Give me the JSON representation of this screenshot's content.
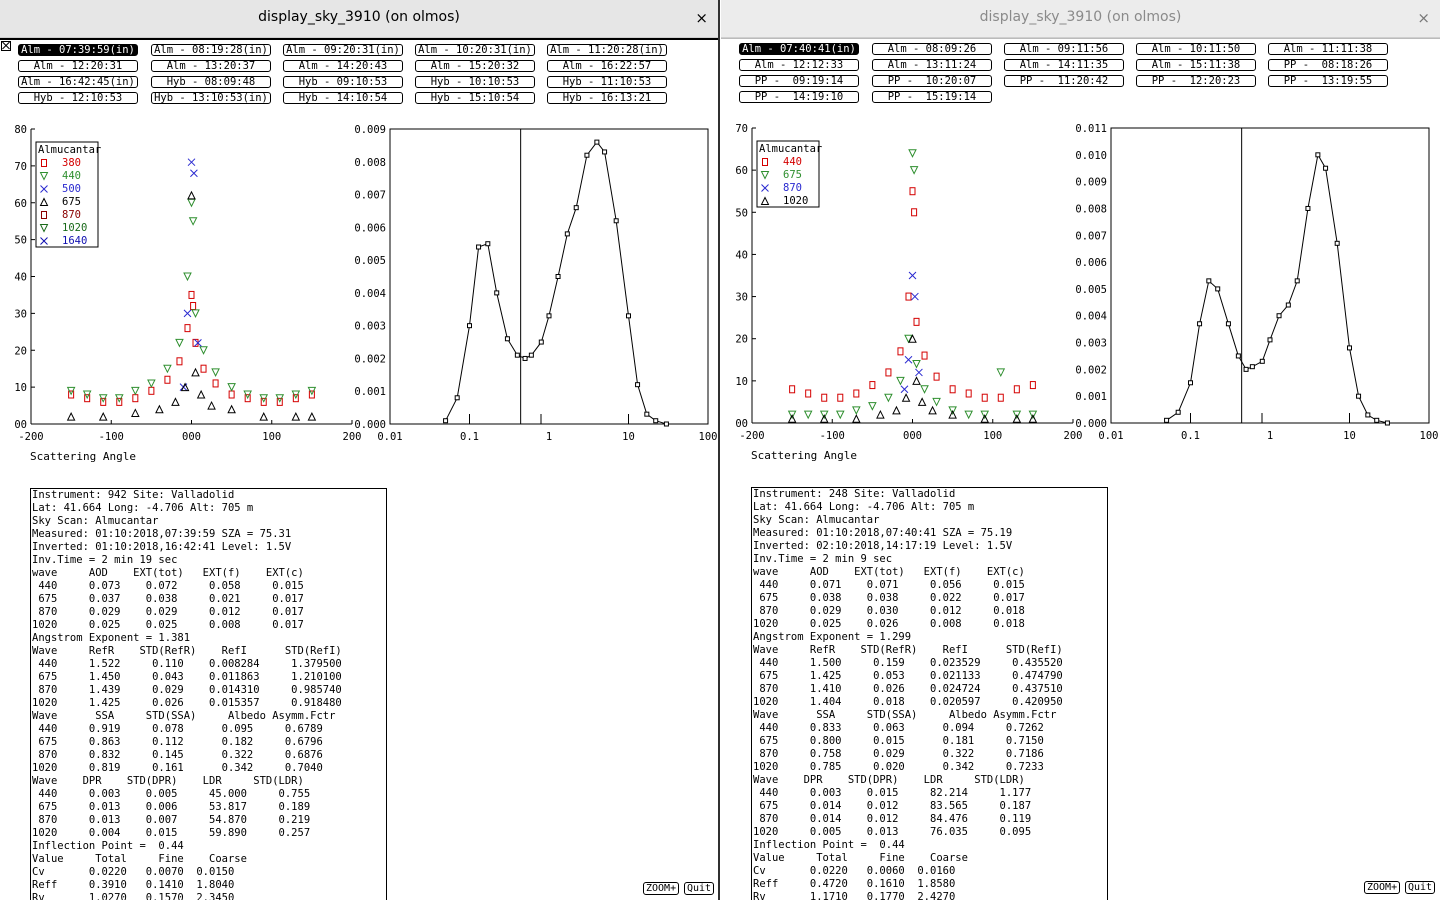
{
  "colors": {
    "c380": "#d40000",
    "c440": "#2f8f2f",
    "c500": "#2a2ad0",
    "c675": "#000000",
    "c870": "#8a0000",
    "c1020": "#1a6a1a",
    "c1640": "#1010b0",
    "r440": "#d40000",
    "r675": "#2f8f2f",
    "r870": "#2a2ad0",
    "r1020": "#000000"
  },
  "icons": {
    "close": "close-icon",
    "toggle": "panel-toggle-icon"
  },
  "left": {
    "title": "display_sky_3910 (on olmos)",
    "close": "×",
    "scans": [
      "Alm - 07:39:59(in)",
      "Alm - 08:19:28(in)",
      "Alm - 09:20:31(in)",
      "Alm - 10:20:31(in)",
      "Alm - 11:20:28(in)",
      "Alm - 12:20:31",
      "Alm - 13:20:37",
      "Alm - 14:20:43",
      "Alm - 15:20:32",
      "Alm - 16:22:57",
      "Alm - 16:42:45(in)",
      "Hyb - 08:09:48",
      "Hyb - 09:10:53",
      "Hyb - 10:10:53",
      "Hyb - 11:10:53",
      "Hyb - 12:10:53",
      "Hyb - 13:10:53(in)",
      "Hyb - 14:10:54",
      "Hyb - 15:10:54",
      "Hyb - 16:13:21"
    ],
    "selected_scan": 0,
    "legend_title": "Almucantar",
    "legend": [
      {
        "label": "380",
        "color": "#d40000",
        "sym": "sq"
      },
      {
        "label": "440",
        "color": "#2f8f2f",
        "sym": "tri"
      },
      {
        "label": "500",
        "color": "#2a2ad0",
        "sym": "x"
      },
      {
        "label": "675",
        "color": "#000000",
        "sym": "up"
      },
      {
        "label": "870",
        "color": "#8a0000",
        "sym": "sq"
      },
      {
        "label": "1020",
        "color": "#1a6a1a",
        "sym": "tri"
      },
      {
        "label": "1640",
        "color": "#1010b0",
        "sym": "x"
      }
    ],
    "left_y_ticks": [
      "80",
      "70",
      "60",
      "50",
      "40",
      "30",
      "20",
      "10",
      "00"
    ],
    "left_x_ticks": [
      "-200",
      "-100",
      "000",
      "100",
      "200"
    ],
    "right_y_ticks": [
      "0.009",
      "0.008",
      "0.007",
      "0.006",
      "0.005",
      "0.004",
      "0.003",
      "0.002",
      "0.001",
      "0.000"
    ],
    "right_x_ticks": [
      "0.01",
      "0.1",
      "1",
      "10",
      "100"
    ],
    "xlabel": "Scattering Angle",
    "info": "Instrument: 942 Site: Valladolid\nLat: 41.664 Long: -4.706 Alt: 705 m\nSky Scan: Almucantar\nMeasured: 01:10:2018,07:39:59 SZA = 75.31\nInverted: 01:10:2018,16:42:41 Level: 1.5V\nInv.Time = 2 min 19 sec\nwave     AOD    EXT(tot)   EXT(f)    EXT(c)\n 440     0.073    0.072     0.058     0.015\n 675     0.037    0.038     0.021     0.017\n 870     0.029    0.029     0.012     0.017\n1020     0.025    0.025     0.008     0.017\nAngstrom Exponent = 1.381\nWave     RefR    STD(RefR)    RefI      STD(RefI)\n 440     1.522     0.110    0.008284     1.379500\n 675     1.450     0.043    0.011863     1.210100\n 870     1.439     0.029    0.014310     0.985740\n1020     1.425     0.026    0.015357     0.918480\nWave      SSA     STD(SSA)     Albedo Asymm.Fctr\n 440     0.919     0.078      0.095     0.6789\n 675     0.863     0.112      0.182     0.6796\n 870     0.832     0.145      0.322     0.6876\n1020     0.819     0.161      0.342     0.7040\nWave    DPR    STD(DPR)    LDR     STD(LDR)\n 440     0.003    0.005     45.000     0.755\n 675     0.013    0.006     53.817     0.189\n 870     0.013    0.007     54.870     0.219\n1020     0.004    0.015     59.890     0.257\nInflection Point =  0.44\nValue     Total     Fine    Coarse\nCv       0.0220   0.0070  0.0150\nReff     0.3910   0.1410  1.8040\nRv       1.0270   0.1570  2.3450",
    "zoom": "ZOOM+",
    "quit": "Quit"
  },
  "right": {
    "title": "display_sky_3910 (on olmos)",
    "close": "×",
    "scans": [
      "Alm - 07:40:41(in)",
      "Alm - 08:09:26",
      "Alm - 09:11:56",
      "Alm - 10:11:50",
      "Alm - 11:11:38",
      "Alm - 12:12:33",
      "Alm - 13:11:24",
      "Alm - 14:11:35",
      "Alm - 15:11:38",
      "PP -  08:18:26",
      "PP -  09:19:14",
      "PP -  10:20:07",
      "PP -  11:20:42",
      "PP -  12:20:23",
      "PP -  13:19:55",
      "PP -  14:19:10",
      "PP -  15:19:14"
    ],
    "selected_scan": 0,
    "legend_title": "Almucantar",
    "legend": [
      {
        "label": "440",
        "color": "#d40000",
        "sym": "sq"
      },
      {
        "label": "675",
        "color": "#2f8f2f",
        "sym": "tri"
      },
      {
        "label": "870",
        "color": "#2a2ad0",
        "sym": "x"
      },
      {
        "label": "1020",
        "color": "#000000",
        "sym": "up"
      }
    ],
    "left_y_ticks": [
      "70",
      "60",
      "50",
      "40",
      "30",
      "20",
      "10",
      "00"
    ],
    "left_x_ticks": [
      "-200",
      "-100",
      "000",
      "100",
      "200"
    ],
    "right_y_ticks": [
      "0.011",
      "0.010",
      "0.009",
      "0.008",
      "0.007",
      "0.006",
      "0.005",
      "0.004",
      "0.003",
      "0.002",
      "0.001",
      "0.000"
    ],
    "right_x_ticks": [
      "0.01",
      "0.1",
      "1",
      "10",
      "100"
    ],
    "xlabel": "Scattering Angle",
    "info": "Instrument: 248 Site: Valladolid\nLat: 41.664 Long: -4.706 Alt: 705 m\nSky Scan: Almucantar\nMeasured: 01:10:2018,07:40:41 SZA = 75.19\nInverted: 02:10:2018,14:17:19 Level: 1.5V\nInv.Time = 2 min 9 sec\nwave     AOD    EXT(tot)   EXT(f)    EXT(c)\n 440     0.071    0.071     0.056     0.015\n 675     0.038    0.038     0.022     0.017\n 870     0.029    0.030     0.012     0.018\n1020     0.025    0.026     0.008     0.018\nAngstrom Exponent = 1.299\nWave     RefR    STD(RefR)    RefI      STD(RefI)\n 440     1.500     0.159    0.023529     0.435520\n 675     1.425     0.053    0.021133     0.474790\n 870     1.410     0.026    0.024724     0.437510\n1020     1.404     0.018    0.020597     0.420950\nWave      SSA     STD(SSA)     Albedo Asymm.Fctr\n 440     0.833     0.063      0.094     0.7262\n 675     0.800     0.015      0.181     0.7150\n 870     0.758     0.029      0.322     0.7186\n1020     0.785     0.020      0.342     0.7233\nWave    DPR    STD(DPR)    LDR     STD(LDR)\n 440     0.003    0.015     82.214     1.177\n 675     0.014    0.012     83.565     0.187\n 870     0.014    0.012     84.476     0.119\n1020     0.005    0.013     76.035     0.095\nInflection Point =  0.44\nValue     Total     Fine    Coarse\nCv       0.0220   0.0060  0.0160\nReff     0.4720   0.1610  1.8580\nRv       1.1710   0.1770  2.4270",
    "zoom": "ZOOM+",
    "quit": "Quit"
  },
  "chart_data": [
    {
      "type": "scatter",
      "panel": "left-almucantar",
      "xlabel": "Scattering Angle",
      "xlim": [
        -200,
        200
      ],
      "ylim": [
        0,
        80
      ],
      "series": [
        {
          "name": "380",
          "x": [
            -150,
            -130,
            -110,
            -90,
            -70,
            -50,
            -30,
            -15,
            -5,
            0,
            2,
            5,
            15,
            30,
            50,
            70,
            90,
            110,
            130,
            150
          ],
          "y": [
            8,
            7,
            6,
            6,
            7,
            9,
            12,
            17,
            26,
            35,
            32,
            22,
            15,
            11,
            8,
            7,
            6,
            6,
            7,
            8
          ]
        },
        {
          "name": "440",
          "x": [
            -150,
            -130,
            -110,
            -90,
            -70,
            -50,
            -30,
            -15,
            -5,
            0,
            2,
            5,
            15,
            30,
            50,
            70,
            90,
            110,
            130,
            150
          ],
          "y": [
            9,
            8,
            7,
            7,
            9,
            11,
            15,
            22,
            40,
            60,
            55,
            30,
            20,
            14,
            10,
            8,
            7,
            7,
            8,
            9
          ]
        },
        {
          "name": "500",
          "x": [
            -10,
            -5,
            0,
            3,
            8
          ],
          "y": [
            10,
            30,
            71,
            68,
            22
          ]
        },
        {
          "name": "675",
          "x": [
            -150,
            -110,
            -70,
            -40,
            -20,
            -8,
            0,
            5,
            12,
            25,
            50,
            90,
            130,
            150
          ],
          "y": [
            2,
            2,
            3,
            4,
            6,
            10,
            62,
            14,
            8,
            5,
            4,
            2,
            2,
            2
          ]
        }
      ]
    },
    {
      "type": "line",
      "panel": "left-size-distribution",
      "xlim": [
        0.01,
        100
      ],
      "ylim": [
        0,
        0.009
      ],
      "x": [
        0.05,
        0.07,
        0.1,
        0.13,
        0.17,
        0.22,
        0.3,
        0.4,
        0.5,
        0.6,
        0.8,
        1.0,
        1.3,
        1.7,
        2.2,
        3,
        4,
        5,
        7,
        10,
        13,
        17,
        22,
        30
      ],
      "y": [
        0.0001,
        0.0008,
        0.003,
        0.0054,
        0.0055,
        0.004,
        0.0026,
        0.0021,
        0.002,
        0.0021,
        0.0025,
        0.0033,
        0.0045,
        0.0058,
        0.0066,
        0.0082,
        0.0086,
        0.0083,
        0.0062,
        0.0033,
        0.0012,
        0.0003,
        0.0001,
        0.0
      ]
    },
    {
      "type": "scatter",
      "panel": "right-almucantar",
      "xlabel": "Scattering Angle",
      "xlim": [
        -200,
        200
      ],
      "ylim": [
        0,
        70
      ],
      "series": [
        {
          "name": "440",
          "x": [
            -150,
            -130,
            -110,
            -90,
            -70,
            -50,
            -30,
            -15,
            -5,
            0,
            2,
            5,
            15,
            30,
            50,
            70,
            90,
            110,
            130,
            150
          ],
          "y": [
            8,
            7,
            6,
            6,
            7,
            9,
            12,
            17,
            30,
            55,
            50,
            24,
            16,
            11,
            8,
            7,
            6,
            6,
            8,
            9
          ]
        },
        {
          "name": "675",
          "x": [
            -150,
            -130,
            -110,
            -90,
            -70,
            -50,
            -30,
            -15,
            -5,
            0,
            2,
            5,
            15,
            30,
            50,
            70,
            90,
            110,
            130,
            150
          ],
          "y": [
            2,
            2,
            2,
            2,
            3,
            4,
            6,
            10,
            20,
            64,
            60,
            14,
            8,
            5,
            3,
            2,
            2,
            12,
            2,
            2
          ]
        },
        {
          "name": "870",
          "x": [
            -10,
            -5,
            0,
            3,
            8
          ],
          "y": [
            8,
            15,
            35,
            30,
            12
          ]
        },
        {
          "name": "1020",
          "x": [
            -150,
            -110,
            -70,
            -40,
            -20,
            -8,
            0,
            5,
            12,
            25,
            50,
            90,
            130,
            150
          ],
          "y": [
            1,
            1,
            1,
            2,
            3,
            6,
            20,
            10,
            5,
            3,
            2,
            1,
            1,
            1
          ]
        }
      ]
    },
    {
      "type": "line",
      "panel": "right-size-distribution",
      "xlim": [
        0.01,
        100
      ],
      "ylim": [
        0,
        0.011
      ],
      "x": [
        0.05,
        0.07,
        0.1,
        0.13,
        0.17,
        0.22,
        0.3,
        0.4,
        0.5,
        0.6,
        0.8,
        1.0,
        1.3,
        1.7,
        2.2,
        3,
        4,
        5,
        7,
        10,
        13,
        17,
        22,
        30
      ],
      "y": [
        0.0001,
        0.0004,
        0.0015,
        0.0037,
        0.0053,
        0.005,
        0.0037,
        0.0025,
        0.002,
        0.0021,
        0.0023,
        0.0031,
        0.004,
        0.0044,
        0.0053,
        0.008,
        0.01,
        0.0095,
        0.0067,
        0.0028,
        0.001,
        0.0003,
        0.0001,
        0.0
      ]
    }
  ]
}
